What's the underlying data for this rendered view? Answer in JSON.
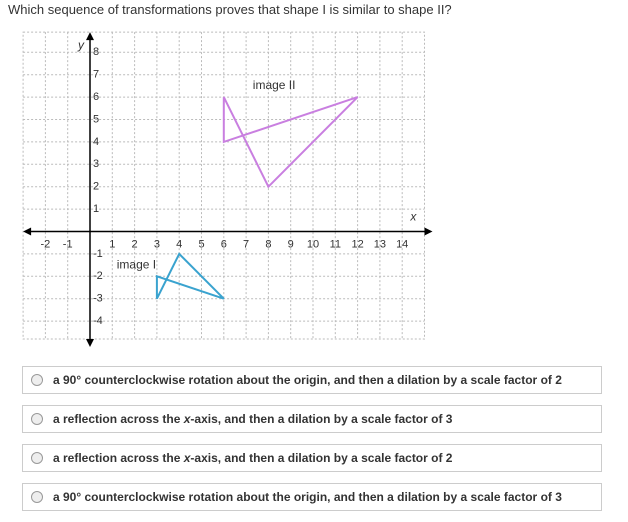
{
  "question": "Which sequence of transformations proves that shape I is similar to shape II?",
  "graph": {
    "xlim": [
      -3,
      15
    ],
    "ylim": [
      -4.8,
      8.9
    ],
    "xticks": [
      -2,
      -1,
      1,
      2,
      3,
      4,
      5,
      6,
      7,
      8,
      9,
      10,
      11,
      12,
      13,
      14
    ],
    "yticks": [
      -4,
      -3,
      -2,
      -1,
      1,
      2,
      3,
      4,
      5,
      6,
      7,
      8
    ],
    "x_label": "x",
    "y_label": "y",
    "shapes": [
      {
        "label": "image II",
        "color": "#c97fe0",
        "x": [
          6,
          6,
          12,
          8
        ],
        "y": [
          6,
          4,
          6,
          2
        ]
      },
      {
        "label": "image I",
        "color": "#3aa3cf",
        "x": [
          3,
          3,
          6,
          4
        ],
        "y": [
          -3,
          -2,
          -3,
          -1
        ]
      }
    ]
  },
  "options": [
    [
      "a 90° counterclockwise rotation about the origin, and then a dilation by a scale factor of 2"
    ],
    [
      "a reflection across the ",
      "x",
      "-axis, and then a dilation by a scale factor of 3"
    ],
    [
      "a reflection across the ",
      "x",
      "-axis, and then a dilation by a scale factor of 2"
    ],
    [
      "a 90° counterclockwise rotation about the origin, and then a dilation by a scale factor of 3"
    ]
  ]
}
